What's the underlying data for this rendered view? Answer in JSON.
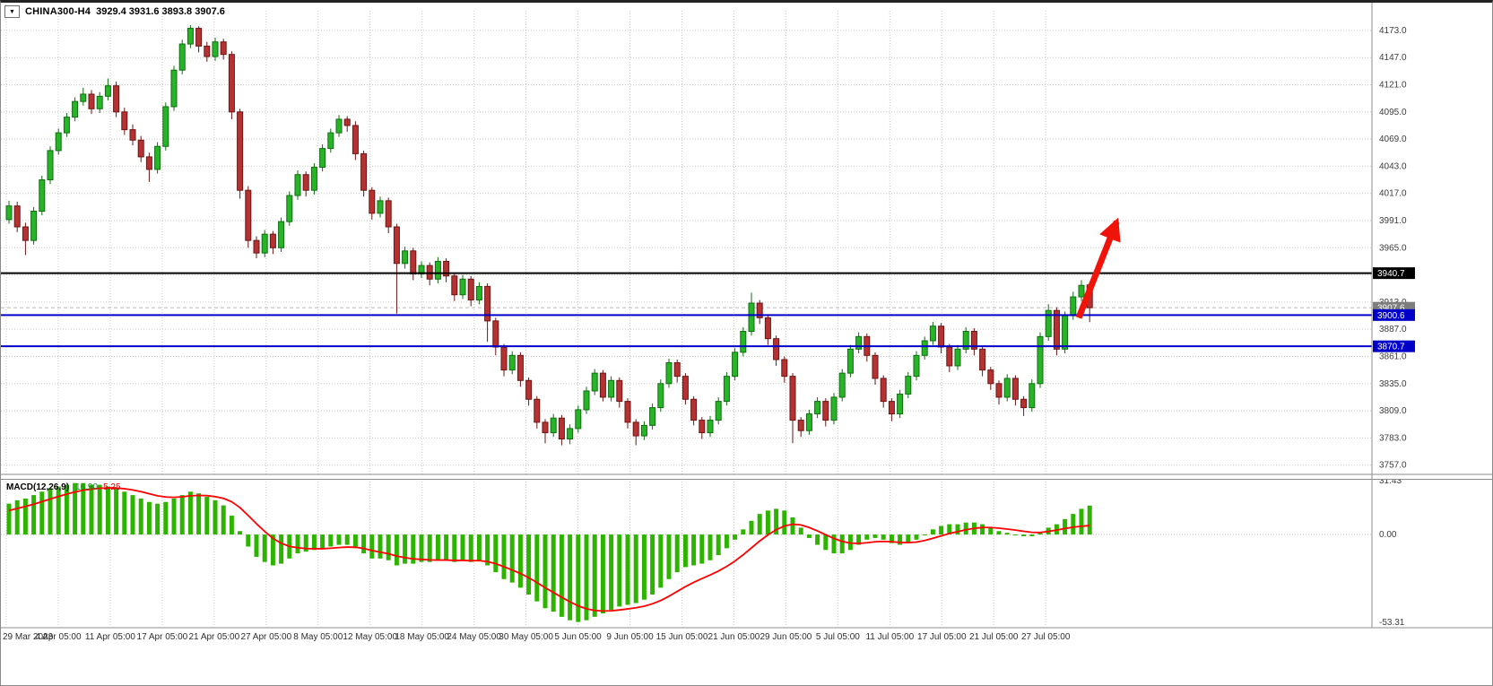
{
  "window": {
    "title": "CHINA300-H4",
    "ohlc": "3929.4 3931.6 3893.8 3907.6",
    "dropdown_icon": "▼"
  },
  "colors": {
    "bull_fill": "#28b428",
    "bull_stroke": "#0f6e0f",
    "bear_fill": "#b43232",
    "bear_stroke": "#6e1414",
    "grid": "#c9c9c9",
    "axis_text": "#3c3c3c",
    "blue_level": "#0000c8",
    "black_level": "#000000",
    "macd_hist": "#2db400",
    "macd_signal": "#ff0000",
    "arrow": "#ef1309",
    "separator": "#8c8c8c"
  },
  "price_axis": {
    "tick_labels": [
      "4173.0",
      "4147.0",
      "4121.0",
      "4095.0",
      "4069.0",
      "4043.0",
      "4017.0",
      "3991.0",
      "3965.0",
      "3939.0",
      "3913.0",
      "3887.0",
      "3861.0",
      "3835.0",
      "3809.0",
      "3783.0",
      "3757.0"
    ],
    "top_value": 4173.0,
    "step": 26.0
  },
  "price_markers": [
    {
      "label": "3940.7",
      "price": 3940.7,
      "bg": "#000000",
      "line_color": "#000000",
      "line_style": "solid",
      "line_width": 2
    },
    {
      "label": "3907.6",
      "price": 3907.6,
      "bg": "#7d7d7d",
      "line_color": "#b8b8b8",
      "line_style": "dashed",
      "line_width": 1
    },
    {
      "label": "3900.6",
      "price": 3900.6,
      "bg": "#0000c8",
      "line_color": "#0000c8",
      "line_style": "solid",
      "line_width": 2
    },
    {
      "label": "3870.7",
      "price": 3870.7,
      "bg": "#0000c8",
      "line_color": "#0000c8",
      "line_style": "solid",
      "line_width": 2
    }
  ],
  "time_axis": {
    "labels": [
      "29 Mar 2023",
      "4 Apr 05:00",
      "11 Apr 05:00",
      "17 Apr 05:00",
      "21 Apr 05:00",
      "27 Apr 05:00",
      "8 May 05:00",
      "12 May 05:00",
      "18 May 05:00",
      "24 May 05:00",
      "30 May 05:00",
      "5 Jun 05:00",
      "9 Jun 05:00",
      "15 Jun 05:00",
      "21 Jun 05:00",
      "29 Jun 05:00",
      "5 Jul 05:00",
      "11 Jul 05:00",
      "17 Jul 05:00",
      "21 Jul 05:00",
      "27 Jul 05:00"
    ]
  },
  "macd_panel": {
    "label": "MACD(12,26,9)",
    "value_main": "16.90",
    "value_signal": "5.25",
    "scale_labels": [
      "31.43",
      "0.00",
      "-53.31"
    ],
    "scale_values": [
      31.43,
      0.0,
      -53.31
    ]
  },
  "annotations": [
    {
      "type": "arrow-up",
      "from_bar": 130,
      "from_price": 3898,
      "to_bar": 134.6,
      "to_price": 3990,
      "color": "#ef1309",
      "width": 7
    }
  ],
  "chart_data": [
    {
      "type": "candlestick",
      "title": "CHINA300-H4",
      "timeframe": "H4",
      "ylim": [
        3749,
        4192
      ],
      "y_tick_step": 26,
      "x_labels_count": 21,
      "candles": [
        [
          3992,
          4010,
          3988,
          4005
        ],
        [
          4005,
          4009,
          3980,
          3985
        ],
        [
          3985,
          3989,
          3958,
          3972
        ],
        [
          3972,
          4004,
          3968,
          4000
        ],
        [
          4000,
          4034,
          3996,
          4030
        ],
        [
          4030,
          4062,
          4026,
          4058
        ],
        [
          4058,
          4079,
          4054,
          4075
        ],
        [
          4075,
          4094,
          4071,
          4090
        ],
        [
          4090,
          4109,
          4086,
          4105
        ],
        [
          4105,
          4118,
          4101,
          4112
        ],
        [
          4112,
          4116,
          4093,
          4098
        ],
        [
          4098,
          4114,
          4094,
          4110
        ],
        [
          4110,
          4127,
          4106,
          4120
        ],
        [
          4120,
          4124,
          4090,
          4095
        ],
        [
          4095,
          4099,
          4073,
          4078
        ],
        [
          4078,
          4083,
          4063,
          4068
        ],
        [
          4068,
          4072,
          4047,
          4052
        ],
        [
          4052,
          4056,
          4028,
          4040
        ],
        [
          4040,
          4066,
          4036,
          4062
        ],
        [
          4062,
          4104,
          4058,
          4100
        ],
        [
          4100,
          4139,
          4096,
          4135
        ],
        [
          4135,
          4164,
          4131,
          4160
        ],
        [
          4160,
          4178,
          4156,
          4175
        ],
        [
          4175,
          4177,
          4152,
          4158
        ],
        [
          4158,
          4162,
          4143,
          4148
        ],
        [
          4148,
          4166,
          4144,
          4162
        ],
        [
          4162,
          4165,
          4145,
          4150
        ],
        [
          4150,
          4153,
          4088,
          4095
        ],
        [
          4095,
          4098,
          4012,
          4020
        ],
        [
          4020,
          4024,
          3965,
          3972
        ],
        [
          3972,
          3976,
          3955,
          3960
        ],
        [
          3960,
          3982,
          3956,
          3978
        ],
        [
          3978,
          3981,
          3959,
          3965
        ],
        [
          3965,
          3994,
          3961,
          3990
        ],
        [
          3990,
          4019,
          3986,
          4015
        ],
        [
          4015,
          4039,
          4011,
          4035
        ],
        [
          4035,
          4038,
          4014,
          4020
        ],
        [
          4020,
          4046,
          4016,
          4042
        ],
        [
          4042,
          4064,
          4038,
          4060
        ],
        [
          4060,
          4079,
          4056,
          4075
        ],
        [
          4075,
          4092,
          4071,
          4088
        ],
        [
          4088,
          4091,
          4076,
          4082
        ],
        [
          4082,
          4086,
          4049,
          4055
        ],
        [
          4055,
          4058,
          4014,
          4020
        ],
        [
          4020,
          4023,
          3992,
          3998
        ],
        [
          3998,
          4014,
          3994,
          4010
        ],
        [
          4010,
          4013,
          3979,
          3985
        ],
        [
          3985,
          3988,
          3902,
          3950
        ],
        [
          3950,
          3966,
          3945,
          3962
        ],
        [
          3962,
          3965,
          3934,
          3940
        ],
        [
          3940,
          3952,
          3936,
          3948
        ],
        [
          3948,
          3951,
          3929,
          3935
        ],
        [
          3935,
          3956,
          3931,
          3952
        ],
        [
          3952,
          3955,
          3932,
          3938
        ],
        [
          3938,
          3941,
          3914,
          3920
        ],
        [
          3920,
          3939,
          3916,
          3935
        ],
        [
          3935,
          3938,
          3909,
          3915
        ],
        [
          3915,
          3932,
          3911,
          3928
        ],
        [
          3928,
          3931,
          3875,
          3895
        ],
        [
          3895,
          3898,
          3862,
          3870
        ],
        [
          3870,
          3873,
          3842,
          3848
        ],
        [
          3848,
          3866,
          3844,
          3862
        ],
        [
          3862,
          3865,
          3832,
          3838
        ],
        [
          3838,
          3841,
          3814,
          3820
        ],
        [
          3820,
          3823,
          3792,
          3798
        ],
        [
          3798,
          3801,
          3778,
          3788
        ],
        [
          3788,
          3806,
          3784,
          3802
        ],
        [
          3802,
          3805,
          3776,
          3782
        ],
        [
          3782,
          3796,
          3777,
          3792
        ],
        [
          3792,
          3814,
          3788,
          3810
        ],
        [
          3810,
          3832,
          3806,
          3828
        ],
        [
          3828,
          3849,
          3824,
          3845
        ],
        [
          3845,
          3848,
          3818,
          3822
        ],
        [
          3822,
          3842,
          3818,
          3838
        ],
        [
          3838,
          3841,
          3812,
          3818
        ],
        [
          3818,
          3821,
          3792,
          3798
        ],
        [
          3798,
          3801,
          3776,
          3785
        ],
        [
          3785,
          3799,
          3781,
          3795
        ],
        [
          3795,
          3816,
          3791,
          3812
        ],
        [
          3812,
          3839,
          3808,
          3835
        ],
        [
          3835,
          3859,
          3831,
          3855
        ],
        [
          3855,
          3858,
          3836,
          3842
        ],
        [
          3842,
          3845,
          3815,
          3820
        ],
        [
          3820,
          3823,
          3795,
          3800
        ],
        [
          3800,
          3803,
          3782,
          3788
        ],
        [
          3788,
          3804,
          3784,
          3800
        ],
        [
          3800,
          3822,
          3796,
          3818
        ],
        [
          3818,
          3846,
          3814,
          3842
        ],
        [
          3842,
          3869,
          3838,
          3865
        ],
        [
          3865,
          3889,
          3861,
          3885
        ],
        [
          3885,
          3922,
          3881,
          3912
        ],
        [
          3912,
          3915,
          3892,
          3898
        ],
        [
          3898,
          3901,
          3872,
          3878
        ],
        [
          3878,
          3881,
          3852,
          3858
        ],
        [
          3858,
          3861,
          3836,
          3842
        ],
        [
          3842,
          3845,
          3778,
          3800
        ],
        [
          3800,
          3803,
          3784,
          3790
        ],
        [
          3790,
          3810,
          3786,
          3806
        ],
        [
          3806,
          3822,
          3802,
          3818
        ],
        [
          3818,
          3821,
          3794,
          3800
        ],
        [
          3800,
          3826,
          3796,
          3822
        ],
        [
          3822,
          3849,
          3818,
          3845
        ],
        [
          3845,
          3872,
          3841,
          3868
        ],
        [
          3868,
          3884,
          3864,
          3880
        ],
        [
          3880,
          3883,
          3856,
          3862
        ],
        [
          3862,
          3865,
          3834,
          3840
        ],
        [
          3840,
          3843,
          3812,
          3818
        ],
        [
          3818,
          3821,
          3799,
          3806
        ],
        [
          3806,
          3829,
          3802,
          3825
        ],
        [
          3825,
          3846,
          3821,
          3842
        ],
        [
          3842,
          3866,
          3838,
          3862
        ],
        [
          3862,
          3880,
          3858,
          3876
        ],
        [
          3876,
          3894,
          3872,
          3890
        ],
        [
          3890,
          3893,
          3864,
          3870
        ],
        [
          3870,
          3873,
          3846,
          3852
        ],
        [
          3852,
          3872,
          3848,
          3868
        ],
        [
          3868,
          3889,
          3864,
          3885
        ],
        [
          3885,
          3888,
          3862,
          3868
        ],
        [
          3868,
          3871,
          3842,
          3848
        ],
        [
          3848,
          3851,
          3829,
          3835
        ],
        [
          3835,
          3838,
          3815,
          3822
        ],
        [
          3822,
          3844,
          3818,
          3840
        ],
        [
          3840,
          3843,
          3814,
          3820
        ],
        [
          3820,
          3823,
          3804,
          3812
        ],
        [
          3812,
          3839,
          3808,
          3835
        ],
        [
          3835,
          3884,
          3831,
          3880
        ],
        [
          3880,
          3911,
          3876,
          3905
        ],
        [
          3905,
          3908,
          3862,
          3868
        ],
        [
          3868,
          3904,
          3864,
          3900
        ],
        [
          3900,
          3923,
          3896,
          3918
        ],
        [
          3918,
          3934,
          3914,
          3929
        ],
        [
          3929.4,
          3931.6,
          3893.8,
          3907.6
        ]
      ]
    },
    {
      "type": "bar+line",
      "name": "MACD(12,26,9)",
      "ylim": [
        -53.31,
        31.43
      ],
      "histogram": [
        18,
        20,
        21,
        23,
        25,
        27,
        28,
        29,
        30,
        30,
        29,
        29,
        28,
        27,
        25,
        23,
        21,
        19,
        18,
        19,
        21,
        23,
        25,
        24,
        22,
        20,
        17,
        11,
        2,
        -7,
        -13,
        -16,
        -18,
        -17,
        -14,
        -11,
        -10,
        -9,
        -8,
        -7,
        -6,
        -6,
        -8,
        -11,
        -14,
        -14,
        -15,
        -18,
        -17,
        -17,
        -16,
        -16,
        -15,
        -15,
        -16,
        -15,
        -16,
        -15,
        -18,
        -22,
        -26,
        -28,
        -31,
        -35,
        -39,
        -43,
        -45,
        -48,
        -50,
        -51,
        -50,
        -48,
        -46,
        -44,
        -42,
        -41,
        -40,
        -38,
        -35,
        -31,
        -26,
        -22,
        -19,
        -18,
        -17,
        -15,
        -12,
        -8,
        -3,
        3,
        8,
        12,
        14,
        15,
        14,
        10,
        4,
        -2,
        -6,
        -9,
        -11,
        -11,
        -9,
        -6,
        -3,
        -2,
        -3,
        -5,
        -6,
        -5,
        -3,
        0,
        3,
        5,
        6,
        6,
        7,
        7,
        6,
        4,
        2,
        1,
        0,
        -1,
        -1,
        1,
        4,
        6,
        9,
        12,
        15,
        16.9
      ],
      "signal": [
        14,
        15.2,
        16.4,
        17.7,
        19.2,
        20.7,
        22.2,
        23.6,
        24.8,
        25.9,
        26.5,
        27.0,
        27.2,
        27.2,
        26.7,
        26.0,
        25.0,
        23.8,
        22.6,
        21.9,
        21.7,
        22.0,
        22.6,
        22.8,
        22.7,
        22.1,
        21.1,
        19.1,
        15.7,
        11.1,
        6.3,
        1.8,
        -2.2,
        -5.1,
        -6.9,
        -7.7,
        -8.2,
        -8.3,
        -8.3,
        -8.0,
        -7.6,
        -7.3,
        -7.4,
        -8.1,
        -9.3,
        -10.3,
        -11.2,
        -12.6,
        -13.5,
        -14.2,
        -14.5,
        -14.8,
        -14.9,
        -14.9,
        -15.1,
        -15.1,
        -15.3,
        -15.2,
        -15.8,
        -17.0,
        -18.8,
        -20.7,
        -22.7,
        -25.2,
        -28.0,
        -31.0,
        -33.8,
        -36.6,
        -39.3,
        -41.6,
        -43.3,
        -44.3,
        -44.6,
        -44.5,
        -44.0,
        -43.4,
        -42.7,
        -41.8,
        -40.4,
        -38.5,
        -36.0,
        -33.2,
        -30.4,
        -27.9,
        -25.7,
        -23.6,
        -21.3,
        -18.6,
        -15.5,
        -11.8,
        -7.8,
        -3.8,
        -0.2,
        2.8,
        5.0,
        6.0,
        5.6,
        4.1,
        2.1,
        -0.1,
        -2.3,
        -4.0,
        -5.0,
        -5.2,
        -4.8,
        -4.2,
        -4.0,
        -4.2,
        -4.6,
        -4.7,
        -4.4,
        -3.5,
        -2.2,
        -0.8,
        0.6,
        1.7,
        2.8,
        3.6,
        4.1,
        4.1,
        3.7,
        3.2,
        2.6,
        1.9,
        1.3,
        1.2,
        1.8,
        2.6,
        3.5,
        4.3,
        4.8,
        5.25
      ]
    }
  ]
}
